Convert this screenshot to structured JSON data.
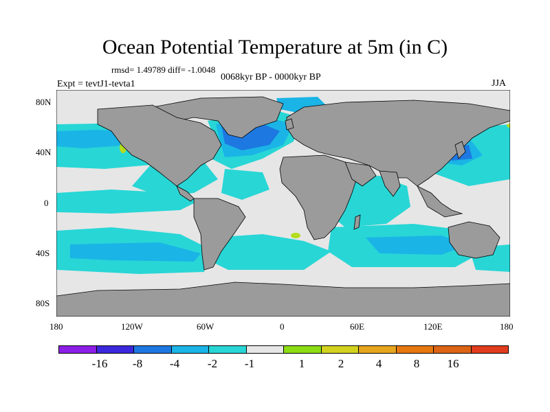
{
  "title": "Ocean Potential Temperature at 5m (in C)",
  "stats": "rmsd= 1.49789  diff= -1.0048",
  "period": "0068kyr BP - 0000kyr BP",
  "experiment": "Expt = tevtJ1-tevta1",
  "season": "JJA",
  "map": {
    "projection": "cylindrical equidistant",
    "lat_range": [
      -90,
      90
    ],
    "lon_range": [
      -180,
      180
    ],
    "lat_ticks": [
      {
        "value": 80,
        "label": "80N"
      },
      {
        "value": 40,
        "label": "40N"
      },
      {
        "value": 0,
        "label": "0"
      },
      {
        "value": -40,
        "label": "40S"
      },
      {
        "value": -80,
        "label": "80S"
      }
    ],
    "lon_ticks": [
      {
        "value": -180,
        "label": "180"
      },
      {
        "value": -120,
        "label": "120W"
      },
      {
        "value": -60,
        "label": "60W"
      },
      {
        "value": 0,
        "label": "0"
      },
      {
        "value": 60,
        "label": "60E"
      },
      {
        "value": 120,
        "label": "120E"
      },
      {
        "value": 180,
        "label": "180"
      }
    ],
    "colors": {
      "land": "#9b9b9b",
      "ocean_neutral": "#e6e6e6",
      "cool_1": "#28d6d6",
      "cool_2": "#1ab4e6",
      "cool_4": "#1e78e1",
      "warm_2": "#b4dc1e"
    }
  },
  "colorbar": {
    "colors": [
      "#8c1ee6",
      "#3c28dc",
      "#1e78e1",
      "#1ab4e6",
      "#28d6d6",
      "#e6e6e6",
      "#8cdc14",
      "#d2d21e",
      "#e6a51e",
      "#e6780f",
      "#dc6414",
      "#e13c1e"
    ],
    "labels": [
      "-16",
      "-8",
      "-4",
      "-2",
      "-1",
      "1",
      "2",
      "4",
      "8",
      "16"
    ]
  }
}
